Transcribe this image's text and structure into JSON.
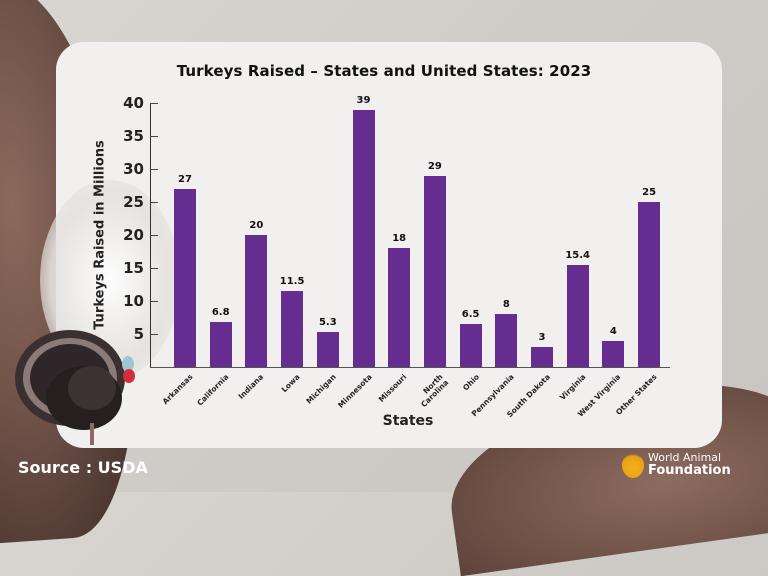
{
  "chart_data": {
    "type": "bar",
    "title": "Turkeys Raised – States and United States: 2023",
    "xlabel": "States",
    "ylabel": "Turkeys Raised in Millions",
    "ylim": [
      0,
      40
    ],
    "yticks": [
      5,
      10,
      15,
      20,
      25,
      30,
      35,
      40
    ],
    "grid": false,
    "legend": null,
    "bar_color": "#662d91",
    "categories": [
      "Arkansas",
      "California",
      "Indiana",
      "Lowa",
      "Michigan",
      "Minnesota",
      "Missouri",
      "North Carolina",
      "Ohio",
      "Pennsylvania",
      "South Dakota",
      "Virginia",
      "West Virginia",
      "Other States"
    ],
    "values": [
      27,
      6.8,
      20,
      11.5,
      5.3,
      39,
      18,
      29,
      6.5,
      8,
      3,
      15.4,
      4,
      25
    ],
    "value_labels": [
      "27",
      "6.8",
      "20",
      "11.5",
      "5.3",
      "39",
      "18",
      "29",
      "6.5",
      "8",
      "3",
      "15.4",
      "4",
      "25"
    ]
  },
  "yticks": [
    "5",
    "10",
    "15",
    "20",
    "25",
    "30",
    "35",
    "40"
  ],
  "footer": {
    "source": "Source : USDA",
    "logo_line1": "World Animal",
    "logo_line2": "Foundation"
  }
}
